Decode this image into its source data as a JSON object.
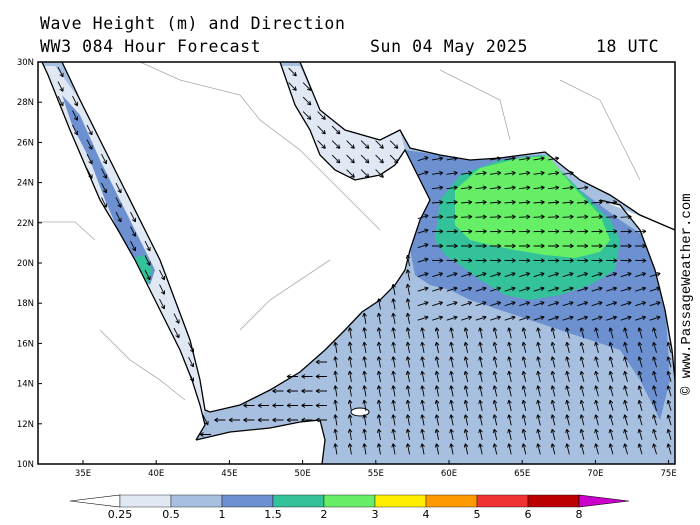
{
  "header": {
    "title_line1": "Wave Height (m) and Direction",
    "model_line": "WW3 084 Hour Forecast",
    "date": "Sun 04 May 2025",
    "time": "18 UTC"
  },
  "credit": "© www.PassageWeather.com",
  "map": {
    "lat_labels": [
      "30N",
      "28N",
      "26N",
      "24N",
      "22N",
      "20N",
      "18N",
      "16N",
      "14N",
      "12N",
      "10N"
    ],
    "lon_labels": [
      "35E",
      "40E",
      "45E",
      "50E",
      "55E",
      "60E",
      "65E",
      "70E",
      "75E"
    ],
    "colors": {
      "land": "#ffffff",
      "coast": "#000000",
      "border": "#aaaaaa",
      "band_0": "#e0e8f4",
      "band_05": "#a8c0e0",
      "band_1": "#6c90d0",
      "band_15": "#34c29a",
      "band_2": "#66ee66"
    }
  },
  "legend": {
    "labels": [
      "0.25",
      "0.5",
      "1",
      "1.5",
      "2",
      "3",
      "4",
      "5",
      "6",
      "8"
    ],
    "colors": [
      "#ffffff",
      "#e0e8f4",
      "#a8c0e0",
      "#6c90d0",
      "#34c29a",
      "#66ee66",
      "#ffee00",
      "#ff9900",
      "#ee3333",
      "#bb0000",
      "#cc00cc"
    ]
  }
}
